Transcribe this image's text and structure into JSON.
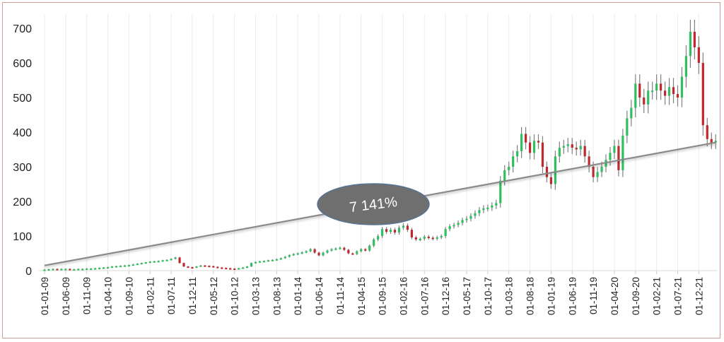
{
  "chart_data": {
    "type": "candlestick",
    "title": "",
    "xlabel": "",
    "ylabel": "",
    "ylim": [
      0,
      700
    ],
    "y_ticks": [
      "0",
      "100",
      "200",
      "300",
      "400",
      "500",
      "600",
      "700"
    ],
    "x_tick_labels": [
      "01-01-09",
      "01-06-09",
      "01-11-09",
      "01-04-10",
      "01-09-10",
      "01-02-11",
      "01-07-11",
      "01-12-11",
      "01-05-12",
      "01-10-12",
      "01-03-13",
      "01-08-13",
      "01-01-14",
      "01-06-14",
      "01-11-14",
      "01-04-15",
      "01-09-15",
      "01-02-16",
      "01-07-16",
      "01-12-16",
      "01-05-17",
      "01-10-17",
      "01-03-18",
      "01-08-18",
      "01-01-19",
      "01-06-19",
      "01-11-19",
      "01-04-20",
      "01-09-20",
      "01-02-21",
      "01-07-21",
      "01-12-21"
    ],
    "x_range": [
      "2009-01",
      "2022-04"
    ],
    "frequency": "monthly",
    "grid": "vertical",
    "colors": {
      "up": "#2fbf5f",
      "down": "#c0282d",
      "wick": "#808080",
      "trend": "#8a8a8a",
      "annotation": "#6f6f6f"
    },
    "monthly_close": [
      3,
      4,
      5,
      4,
      5,
      5,
      4,
      4,
      5,
      5,
      6,
      6,
      7,
      8,
      9,
      10,
      12,
      13,
      14,
      15,
      16,
      18,
      20,
      22,
      24,
      26,
      27,
      28,
      30,
      31,
      34,
      38,
      22,
      12,
      10,
      9,
      12,
      15,
      14,
      13,
      11,
      9,
      8,
      7,
      6,
      5,
      7,
      9,
      12,
      22,
      25,
      27,
      28,
      30,
      31,
      33,
      36,
      40,
      45,
      48,
      50,
      53,
      56,
      62,
      52,
      44,
      52,
      58,
      62,
      64,
      66,
      60,
      50,
      48,
      56,
      62,
      58,
      72,
      90,
      100,
      120,
      112,
      118,
      110,
      124,
      130,
      118,
      96,
      90,
      92,
      98,
      95,
      92,
      96,
      100,
      120,
      128,
      132,
      138,
      146,
      150,
      158,
      166,
      175,
      180,
      182,
      188,
      195,
      260,
      290,
      300,
      330,
      345,
      395,
      370,
      340,
      375,
      370,
      300,
      270,
      250,
      330,
      355,
      360,
      365,
      355,
      350,
      360,
      330,
      300,
      270,
      285,
      300,
      320,
      340,
      360,
      290,
      390,
      440,
      470,
      540,
      500,
      480,
      520,
      520,
      540,
      520,
      505,
      530,
      510,
      500,
      560,
      620,
      690,
      645,
      600,
      420,
      380,
      370,
      375
    ],
    "trend_line": {
      "start": 15,
      "end": 370
    },
    "annotation": "7 141%"
  }
}
